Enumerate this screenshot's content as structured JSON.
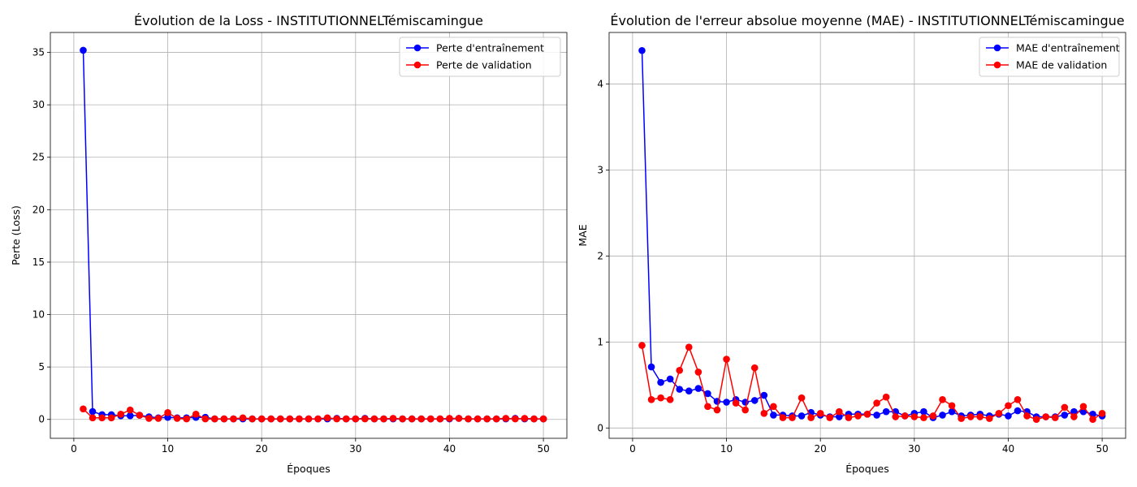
{
  "chart_data": [
    {
      "type": "line",
      "title": "Évolution de la Loss - INSTITUTIONNELTémiscamingue",
      "xlabel": "Époques",
      "ylabel": "Perte (Loss)",
      "xlim": [
        -2.5,
        52.5
      ],
      "ylim": [
        -1.8,
        36.9
      ],
      "xticks": [
        0,
        10,
        20,
        30,
        40,
        50
      ],
      "yticks": [
        0,
        5,
        10,
        15,
        20,
        25,
        30,
        35
      ],
      "grid": true,
      "legend_position": "top-right",
      "x": [
        1,
        2,
        3,
        4,
        5,
        6,
        7,
        8,
        9,
        10,
        11,
        12,
        13,
        14,
        15,
        16,
        17,
        18,
        19,
        20,
        21,
        22,
        23,
        24,
        25,
        26,
        27,
        28,
        29,
        30,
        31,
        32,
        33,
        34,
        35,
        36,
        37,
        38,
        39,
        40,
        41,
        42,
        43,
        44,
        45,
        46,
        47,
        48,
        49,
        50
      ],
      "series": [
        {
          "name": "Perte d'entraînement",
          "color": "#0000ff",
          "values": [
            35.2,
            0.75,
            0.45,
            0.45,
            0.35,
            0.35,
            0.4,
            0.25,
            0.15,
            0.2,
            0.15,
            0.15,
            0.2,
            0.2,
            0.05,
            0.05,
            0.05,
            0.05,
            0.05,
            0.05,
            0.05,
            0.05,
            0.05,
            0.05,
            0.05,
            0.05,
            0.05,
            0.1,
            0.05,
            0.05,
            0.1,
            0.05,
            0.05,
            0.05,
            0.05,
            0.05,
            0.05,
            0.05,
            0.05,
            0.05,
            0.1,
            0.05,
            0.05,
            0.05,
            0.05,
            0.05,
            0.1,
            0.05,
            0.05,
            0.05
          ]
        },
        {
          "name": "Perte de validation",
          "color": "#ff0000",
          "values": [
            1.0,
            0.15,
            0.15,
            0.15,
            0.5,
            0.9,
            0.4,
            0.1,
            0.1,
            0.65,
            0.1,
            0.05,
            0.5,
            0.05,
            0.05,
            0.05,
            0.05,
            0.15,
            0.05,
            0.05,
            0.05,
            0.05,
            0.05,
            0.05,
            0.05,
            0.05,
            0.15,
            0.05,
            0.05,
            0.05,
            0.05,
            0.05,
            0.05,
            0.1,
            0.05,
            0.05,
            0.05,
            0.05,
            0.05,
            0.1,
            0.1,
            0.05,
            0.05,
            0.05,
            0.05,
            0.1,
            0.05,
            0.1,
            0.05,
            0.05
          ]
        }
      ]
    },
    {
      "type": "line",
      "title": "Évolution de l'erreur absolue moyenne (MAE) - INSTITUTIONNELTémiscamingue",
      "xlabel": "Époques",
      "ylabel": "MAE",
      "xlim": [
        -2.5,
        52.5
      ],
      "ylim": [
        -0.12,
        4.6
      ],
      "xticks": [
        0,
        10,
        20,
        30,
        40,
        50
      ],
      "yticks": [
        0,
        1,
        2,
        3,
        4
      ],
      "grid": true,
      "legend_position": "top-right",
      "x": [
        1,
        2,
        3,
        4,
        5,
        6,
        7,
        8,
        9,
        10,
        11,
        12,
        13,
        14,
        15,
        16,
        17,
        18,
        19,
        20,
        21,
        22,
        23,
        24,
        25,
        26,
        27,
        28,
        29,
        30,
        31,
        32,
        33,
        34,
        35,
        36,
        37,
        38,
        39,
        40,
        41,
        42,
        43,
        44,
        45,
        46,
        47,
        48,
        49,
        50
      ],
      "series": [
        {
          "name": "MAE d'entraînement",
          "color": "#0000ff",
          "values": [
            4.39,
            0.71,
            0.53,
            0.57,
            0.45,
            0.43,
            0.46,
            0.4,
            0.31,
            0.3,
            0.33,
            0.3,
            0.32,
            0.38,
            0.15,
            0.15,
            0.14,
            0.14,
            0.18,
            0.15,
            0.13,
            0.13,
            0.16,
            0.16,
            0.16,
            0.15,
            0.19,
            0.19,
            0.14,
            0.17,
            0.19,
            0.12,
            0.15,
            0.19,
            0.14,
            0.15,
            0.16,
            0.14,
            0.16,
            0.14,
            0.2,
            0.19,
            0.13,
            0.13,
            0.13,
            0.15,
            0.19,
            0.19,
            0.16,
            0.14
          ]
        },
        {
          "name": "MAE de validation",
          "color": "#ff0000",
          "values": [
            0.96,
            0.33,
            0.35,
            0.33,
            0.67,
            0.94,
            0.65,
            0.25,
            0.21,
            0.8,
            0.29,
            0.21,
            0.7,
            0.17,
            0.25,
            0.12,
            0.12,
            0.35,
            0.12,
            0.17,
            0.12,
            0.19,
            0.12,
            0.14,
            0.16,
            0.29,
            0.36,
            0.13,
            0.14,
            0.13,
            0.12,
            0.14,
            0.33,
            0.26,
            0.11,
            0.13,
            0.13,
            0.11,
            0.17,
            0.26,
            0.33,
            0.14,
            0.1,
            0.13,
            0.12,
            0.24,
            0.13,
            0.25,
            0.1,
            0.17
          ]
        }
      ]
    }
  ]
}
